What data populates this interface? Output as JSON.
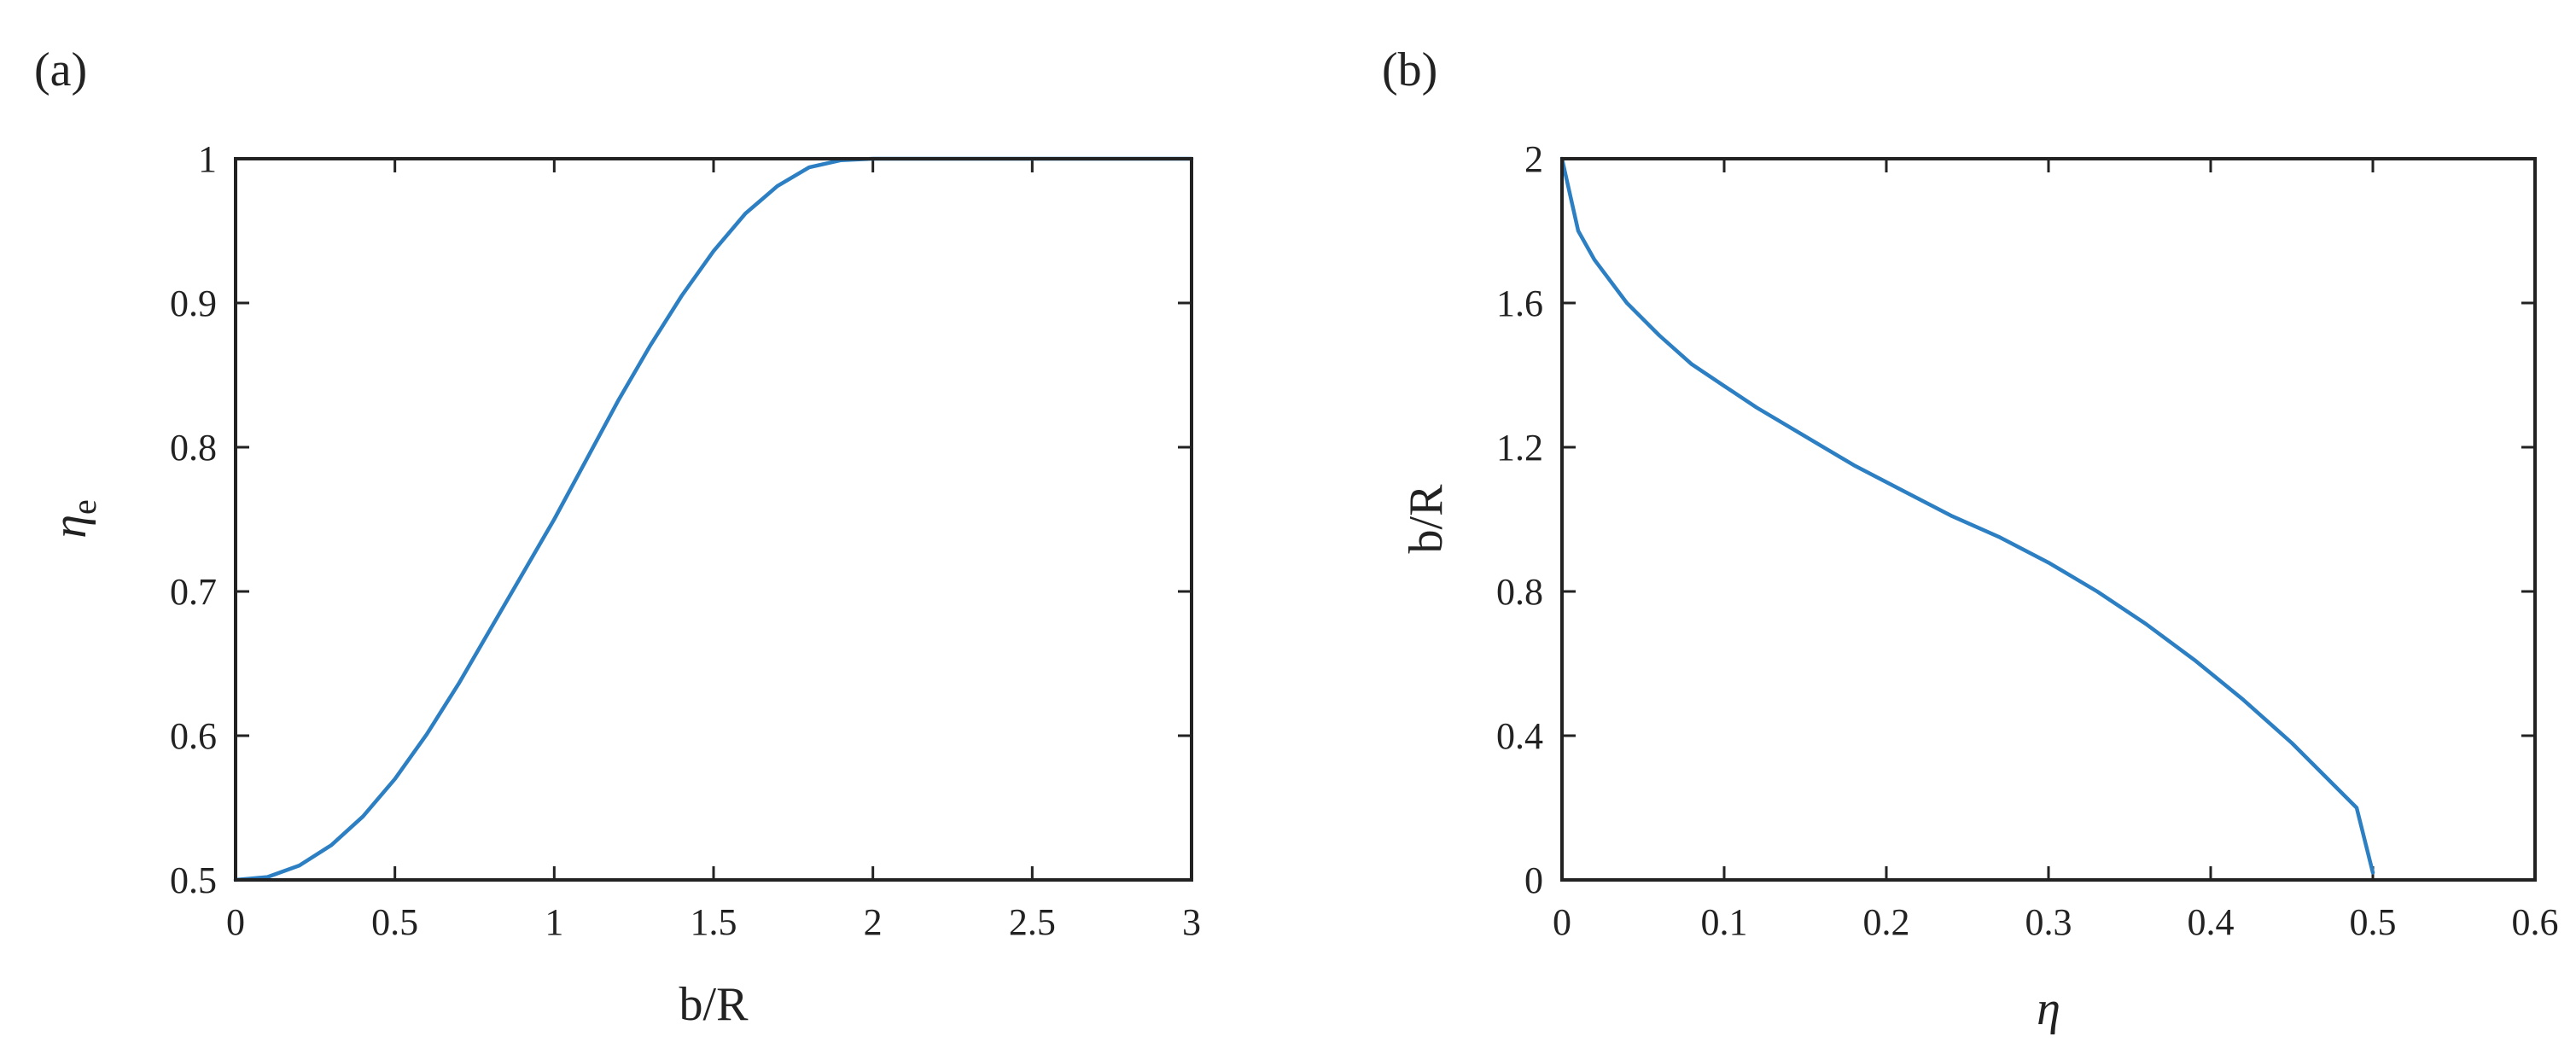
{
  "chart_data": [
    {
      "type": "line",
      "panel_label": "(a)",
      "xlabel": "b/R",
      "ylabel_main": "η",
      "ylabel_sub": "e",
      "xlim": [
        0,
        3
      ],
      "ylim": [
        0.5,
        1
      ],
      "xticks": [
        0,
        0.5,
        1,
        1.5,
        2,
        2.5,
        3
      ],
      "xtick_labels": [
        "0",
        "0.5",
        "1",
        "1.5",
        "2",
        "2.5",
        "3"
      ],
      "yticks": [
        0.5,
        0.6,
        0.7,
        0.8,
        0.9,
        1
      ],
      "ytick_labels": [
        "0.5",
        "0.6",
        "0.7",
        "0.8",
        "0.9",
        "1"
      ],
      "grid": false,
      "color": "#2b7fc2",
      "series": [
        {
          "x": [
            0,
            0.1,
            0.2,
            0.3,
            0.4,
            0.5,
            0.6,
            0.7,
            0.8,
            0.9,
            1.0,
            1.1,
            1.2,
            1.3,
            1.4,
            1.5,
            1.6,
            1.7,
            1.8,
            1.9,
            2.0,
            2.5,
            3.0
          ],
          "y": [
            0.5,
            0.502,
            0.51,
            0.524,
            0.544,
            0.57,
            0.601,
            0.636,
            0.674,
            0.712,
            0.75,
            0.791,
            0.832,
            0.87,
            0.905,
            0.936,
            0.962,
            0.981,
            0.994,
            0.999,
            1.0,
            1.0,
            1.0
          ]
        }
      ]
    },
    {
      "type": "line",
      "panel_label": "(b)",
      "xlabel": "η",
      "ylabel": "b/R",
      "xlim": [
        0,
        0.6
      ],
      "ylim": [
        0,
        2
      ],
      "xticks": [
        0,
        0.1,
        0.2,
        0.3,
        0.4,
        0.5,
        0.6
      ],
      "xtick_labels": [
        "0",
        "0.1",
        "0.2",
        "0.3",
        "0.4",
        "0.5",
        "0.6"
      ],
      "yticks": [
        0,
        0.4,
        0.8,
        1.2,
        1.6,
        2
      ],
      "ytick_labels": [
        "0",
        "0.4",
        "0.8",
        "1.2",
        "1.6",
        "2"
      ],
      "grid": false,
      "color": "#2b7fc2",
      "series": [
        {
          "x": [
            0.0,
            0.01,
            0.02,
            0.04,
            0.06,
            0.08,
            0.1,
            0.12,
            0.15,
            0.18,
            0.21,
            0.24,
            0.27,
            0.3,
            0.33,
            0.36,
            0.39,
            0.42,
            0.45,
            0.47,
            0.49,
            0.5
          ],
          "y": [
            2.0,
            1.8,
            1.72,
            1.6,
            1.51,
            1.43,
            1.37,
            1.31,
            1.23,
            1.15,
            1.08,
            1.01,
            0.95,
            0.88,
            0.8,
            0.71,
            0.61,
            0.5,
            0.38,
            0.29,
            0.2,
            0.02
          ]
        }
      ]
    }
  ]
}
